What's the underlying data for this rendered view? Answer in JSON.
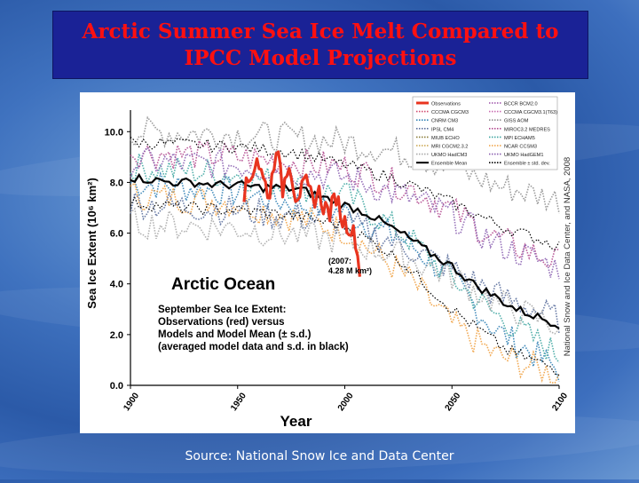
{
  "slide": {
    "title_line1": "Arctic Summer Sea Ice Melt Compared to",
    "title_line2": "IPCC Model Projections",
    "source": "Source: National Snow Ice and Data Center"
  },
  "chart_data": {
    "type": "line",
    "ylabel": "Sea Ice Extent (10⁶ km²)",
    "xlabel": "Year",
    "xlim": [
      1900,
      2100
    ],
    "ylim": [
      0,
      10.5
    ],
    "x_ticks": [
      1900,
      1950,
      2000,
      2050,
      2100
    ],
    "y_ticks": [
      "0.0",
      "2.0",
      "4.0",
      "6.0",
      "8.0",
      "10.0"
    ],
    "region_label": "Arctic Ocean",
    "annotation_2007": [
      "(2007:",
      "4.28 M km²)"
    ],
    "caption_lines": [
      "September Sea Ice Extent:",
      "Observations (red) versus",
      "Models and Model Mean (± s.d.)",
      "(averaged model data and s.d. in black)"
    ],
    "credit": "National Snow and Ice Data Center, and NASA, 2008",
    "legend": [
      {
        "name": "Observations",
        "color": "#e8341f",
        "style": "thick"
      },
      {
        "name": "BCCR BCM2.0",
        "color": "#9b4fa8",
        "style": "dotted"
      },
      {
        "name": "CCCMA CGCM3",
        "color": "#d14a6e",
        "style": "dotted"
      },
      {
        "name": "CCCMA CGCM3.1(T63)",
        "color": "#c96bb0",
        "style": "dotted"
      },
      {
        "name": "CNRM CM3",
        "color": "#2f80b4",
        "style": "dotted"
      },
      {
        "name": "GISS AOM",
        "color": "#8f8f8f",
        "style": "dotted"
      },
      {
        "name": "IPSL CM4",
        "color": "#5a6e9c",
        "style": "dotted"
      },
      {
        "name": "MIROC3.2 MEDRES",
        "color": "#b24a8f",
        "style": "dotted"
      },
      {
        "name": "MIUB ECHO",
        "color": "#8a7d3a",
        "style": "dotted"
      },
      {
        "name": "MPI ECHAM5",
        "color": "#3fa6a1",
        "style": "dotted"
      },
      {
        "name": "MRI CGCM2.3.2",
        "color": "#c9a34a",
        "style": "dotted"
      },
      {
        "name": "NCAR CCSM3",
        "color": "#f0a040",
        "style": "dotted"
      },
      {
        "name": "UKMO HadCM3",
        "color": "#a9a9a9",
        "style": "dotted"
      },
      {
        "name": "UKMO HadGEM1",
        "color": "#8a5fb0",
        "style": "dotted"
      },
      {
        "name": "Ensemble Mean",
        "color": "#000000",
        "style": "solid"
      },
      {
        "name": "Ensemble ± std. dev.",
        "color": "#000000",
        "style": "dotted"
      }
    ],
    "observations": {
      "x": [
        1953,
        1956,
        1959,
        1962,
        1965,
        1968,
        1971,
        1974,
        1977,
        1979,
        1982,
        1985,
        1988,
        1990,
        1993,
        1996,
        1999,
        2002,
        2005,
        2007
      ],
      "y": [
        7.6,
        8.2,
        9.0,
        8.1,
        7.5,
        9.5,
        7.7,
        8.9,
        7.5,
        7.6,
        7.9,
        7.3,
        7.6,
        7.1,
        6.8,
        7.5,
        6.5,
        6.3,
        5.8,
        4.28
      ]
    },
    "ensemble_mean": {
      "x": [
        1900,
        1910,
        1920,
        1930,
        1940,
        1950,
        1960,
        1970,
        1980,
        1990,
        2000,
        2010,
        2020,
        2030,
        2040,
        2050,
        2060,
        2070,
        2080,
        2090,
        2100
      ],
      "y": [
        8.2,
        8.1,
        8.0,
        8.0,
        7.9,
        7.9,
        7.8,
        7.8,
        7.7,
        7.4,
        7.1,
        6.8,
        6.3,
        5.8,
        5.2,
        4.7,
        4.0,
        3.5,
        3.0,
        2.7,
        2.4
      ]
    },
    "ensemble_upper": {
      "x": [
        1900,
        1925,
        1950,
        1975,
        2000,
        2025,
        2050,
        2075,
        2100
      ],
      "y": [
        9.6,
        9.5,
        9.4,
        9.2,
        8.7,
        8.1,
        7.2,
        6.2,
        5.5
      ]
    },
    "ensemble_lower": {
      "x": [
        1900,
        1925,
        1950,
        1975,
        2000,
        2025,
        2050,
        2075,
        2100
      ],
      "y": [
        7.2,
        7.0,
        6.9,
        6.7,
        6.3,
        5.0,
        3.0,
        1.4,
        0.6
      ]
    },
    "models": [
      {
        "name": "CNRM CM3",
        "x": [
          1900,
          1950,
          2000,
          2030,
          2050,
          2070,
          2100
        ],
        "y": [
          8.0,
          7.6,
          6.8,
          5.6,
          4.2,
          2.2,
          0.6
        ]
      },
      {
        "name": "NCAR CCSM3",
        "x": [
          1900,
          1950,
          2000,
          2030,
          2050,
          2070,
          2100
        ],
        "y": [
          7.5,
          7.2,
          6.1,
          4.2,
          2.4,
          1.2,
          0.4
        ]
      },
      {
        "name": "MPI ECHAM5",
        "x": [
          1900,
          1950,
          2000,
          2030,
          2050,
          2070,
          2100
        ],
        "y": [
          8.6,
          8.3,
          7.5,
          5.8,
          4.2,
          2.8,
          1.2
        ]
      },
      {
        "name": "GISS AOM",
        "x": [
          1900,
          1950,
          2000,
          2030,
          2050,
          2070,
          2100
        ],
        "y": [
          10.0,
          9.9,
          9.6,
          9.1,
          8.6,
          7.9,
          7.3
        ]
      },
      {
        "name": "MIROC3.2 MEDRES",
        "x": [
          1900,
          1950,
          2000,
          2030,
          2050,
          2070,
          2100
        ],
        "y": [
          9.2,
          9.0,
          8.6,
          7.8,
          6.9,
          5.8,
          4.8
        ]
      },
      {
        "name": "UKMO HadGEM1",
        "x": [
          1900,
          1950,
          2000,
          2030,
          2050,
          2070,
          2100
        ],
        "y": [
          8.8,
          8.7,
          8.2,
          7.4,
          6.7,
          5.6,
          4.6
        ]
      },
      {
        "name": "IPSL CM4",
        "x": [
          1900,
          1950,
          2000,
          2030,
          2050,
          2070,
          2100
        ],
        "y": [
          7.2,
          6.9,
          6.4,
          5.4,
          4.6,
          3.6,
          2.6
        ]
      },
      {
        "name": "UKMO HadCM3",
        "x": [
          1900,
          1950,
          2000,
          2030,
          2050,
          2070,
          2100
        ],
        "y": [
          6.4,
          6.2,
          5.7,
          5.0,
          4.3,
          3.3,
          2.3
        ]
      }
    ]
  }
}
